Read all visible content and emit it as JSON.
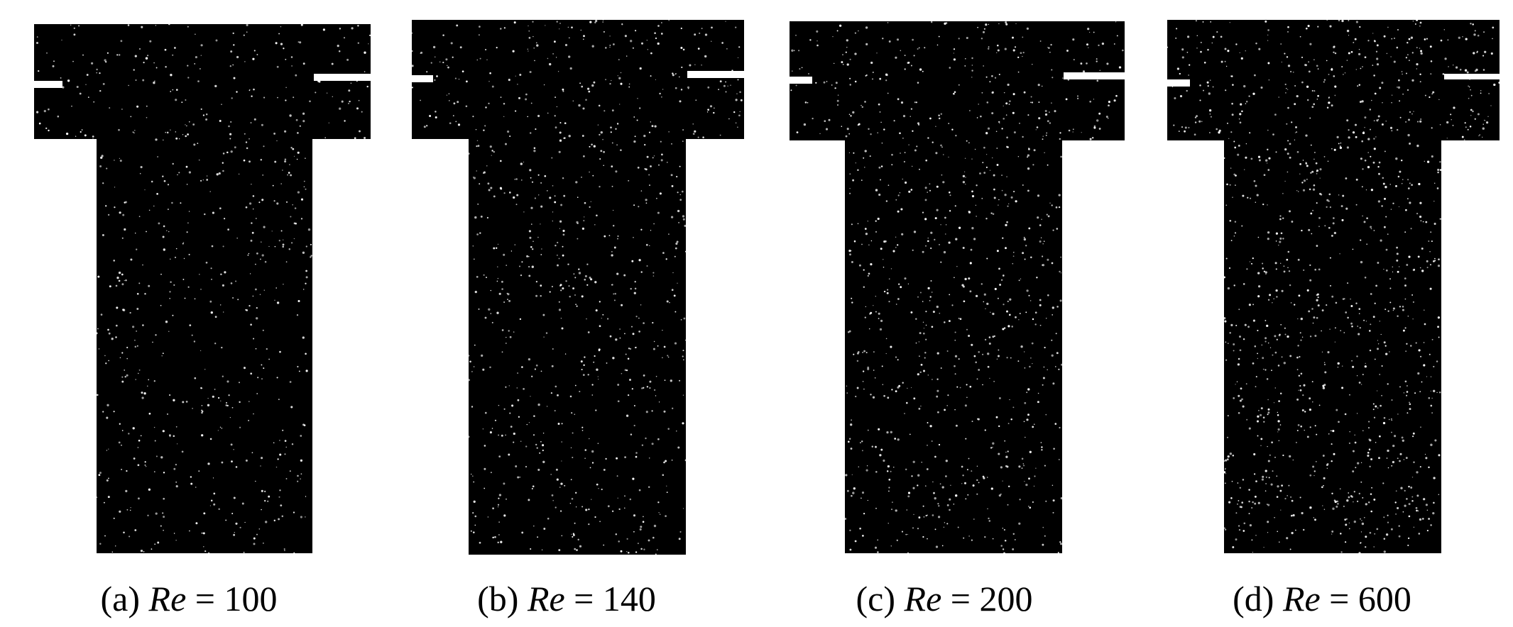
{
  "panels": [
    {
      "letter": "(a)",
      "re_symbol": "Re",
      "equals": "=",
      "value": "100",
      "particle_density": 0.45
    },
    {
      "letter": "(b)",
      "re_symbol": "Re",
      "equals": "=",
      "value": "140",
      "particle_density": 0.55
    },
    {
      "letter": "(c)",
      "re_symbol": "Re",
      "equals": "=",
      "value": "200",
      "particle_density": 0.6
    },
    {
      "letter": "(d)",
      "re_symbol": "Re",
      "equals": "=",
      "value": "600",
      "particle_density": 0.75
    }
  ],
  "colors": {
    "background": "#ffffff",
    "fluid": "#000000",
    "particles": "#ffffff",
    "caption": "#000000"
  }
}
